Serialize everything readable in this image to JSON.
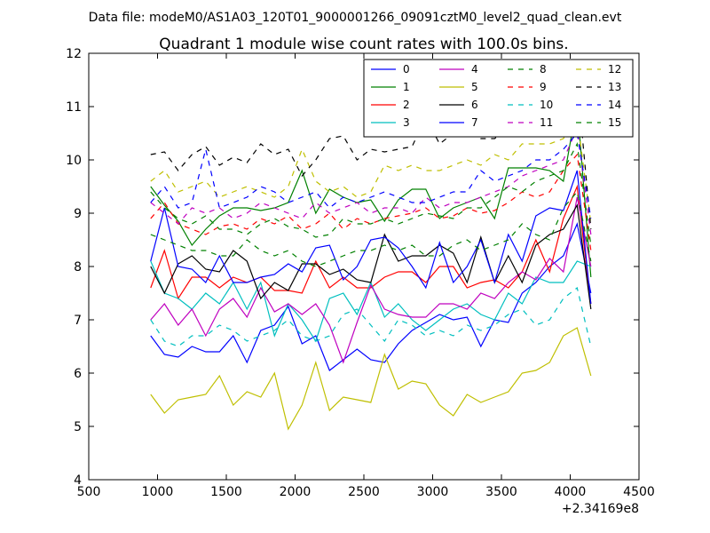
{
  "header": {
    "file_label": "Data file: modeM0/AS1A03_120T01_9000001266_09091cztM0_level2_quad_clean.evt"
  },
  "chart_data": {
    "type": "line",
    "title": "Quadrant 1 module wise count rates with 100.0s bins.",
    "xlabel": "",
    "ylabel": "",
    "x_offset_label": "+2.34169e8",
    "xlim": [
      500,
      4500
    ],
    "ylim": [
      4,
      12
    ],
    "x_ticks": [
      500,
      1000,
      1500,
      2000,
      2500,
      3000,
      3500,
      4000,
      4500
    ],
    "y_ticks": [
      4,
      5,
      6,
      7,
      8,
      9,
      10,
      11,
      12
    ],
    "grid": false,
    "legend_position": "top-right",
    "legend_columns": 4,
    "x": [
      950,
      1050,
      1150,
      1250,
      1350,
      1450,
      1550,
      1650,
      1750,
      1850,
      1950,
      2050,
      2150,
      2250,
      2350,
      2450,
      2550,
      2650,
      2750,
      2850,
      2950,
      3050,
      3150,
      3250,
      3350,
      3450,
      3550,
      3650,
      3750,
      3850,
      3950,
      4050,
      4150
    ],
    "series": [
      {
        "name": "0",
        "color": "#0000ff",
        "dash": "solid",
        "values": [
          6.7,
          6.35,
          6.3,
          6.5,
          6.4,
          6.4,
          6.7,
          6.2,
          6.8,
          6.9,
          7.25,
          6.55,
          6.7,
          6.05,
          6.25,
          6.45,
          6.25,
          6.2,
          6.55,
          6.8,
          6.95,
          7.1,
          7.0,
          7.05,
          6.5,
          7.0,
          6.95,
          7.5,
          7.7,
          8.0,
          8.2,
          8.8,
          7.5
        ]
      },
      {
        "name": "1",
        "color": "#008000",
        "dash": "solid",
        "values": [
          9.5,
          9.15,
          8.85,
          8.4,
          8.7,
          8.95,
          9.1,
          9.1,
          9.05,
          9.1,
          9.2,
          9.8,
          9.0,
          9.45,
          9.3,
          9.2,
          9.25,
          8.85,
          9.25,
          9.45,
          9.45,
          8.9,
          9.1,
          9.2,
          9.3,
          8.9,
          9.85,
          9.85,
          9.85,
          9.8,
          9.6,
          11.05,
          7.8
        ]
      },
      {
        "name": "2",
        "color": "#ff0000",
        "dash": "solid",
        "values": [
          7.6,
          8.3,
          7.4,
          7.8,
          7.8,
          7.6,
          7.8,
          7.7,
          7.8,
          7.55,
          7.55,
          7.5,
          8.1,
          7.6,
          7.8,
          7.6,
          7.6,
          7.8,
          7.9,
          7.9,
          7.7,
          8.0,
          8.0,
          7.6,
          7.7,
          7.75,
          7.6,
          7.9,
          8.5,
          7.9,
          8.9,
          9.5,
          7.3
        ]
      },
      {
        "name": "3",
        "color": "#00bfbf",
        "dash": "solid",
        "values": [
          8.1,
          7.5,
          7.4,
          7.2,
          7.5,
          7.3,
          7.7,
          7.2,
          7.7,
          6.7,
          7.3,
          7.0,
          6.6,
          7.4,
          7.5,
          7.1,
          7.7,
          7.05,
          7.3,
          7.0,
          6.8,
          7.0,
          7.2,
          7.3,
          7.1,
          7.0,
          7.5,
          7.3,
          7.8,
          7.7,
          7.7,
          8.1,
          8.0
        ]
      },
      {
        "name": "4",
        "color": "#bf00bf",
        "dash": "solid",
        "values": [
          7.0,
          7.3,
          6.9,
          7.2,
          6.7,
          7.2,
          7.4,
          7.05,
          7.6,
          7.15,
          7.3,
          7.1,
          7.3,
          6.9,
          6.2,
          6.95,
          7.65,
          7.2,
          7.1,
          7.05,
          7.05,
          7.3,
          7.3,
          7.2,
          7.5,
          7.4,
          7.7,
          7.9,
          7.75,
          8.15,
          7.9,
          9.3,
          8.0
        ]
      },
      {
        "name": "5",
        "color": "#bfbf00",
        "dash": "solid",
        "values": [
          5.6,
          5.25,
          5.5,
          5.55,
          5.6,
          5.95,
          5.4,
          5.65,
          5.55,
          6.0,
          4.95,
          5.4,
          6.2,
          5.3,
          5.55,
          5.5,
          5.45,
          6.35,
          5.7,
          5.85,
          5.8,
          5.4,
          5.2,
          5.6,
          5.45,
          5.55,
          5.65,
          6.0,
          6.05,
          6.2,
          6.7,
          6.85,
          5.95
        ]
      },
      {
        "name": "6",
        "color": "#000000",
        "dash": "solid",
        "values": [
          8.0,
          7.5,
          8.05,
          8.2,
          7.95,
          7.9,
          8.3,
          8.1,
          7.4,
          7.7,
          7.55,
          8.05,
          8.05,
          7.85,
          7.95,
          7.75,
          7.7,
          8.6,
          8.1,
          8.2,
          8.2,
          8.4,
          8.25,
          7.7,
          8.55,
          7.7,
          8.2,
          7.7,
          8.4,
          8.6,
          8.7,
          9.15,
          7.2
        ]
      },
      {
        "name": "7",
        "color": "#0000ff",
        "dash": "solid",
        "values": [
          8.1,
          9.1,
          8.0,
          7.95,
          7.7,
          8.2,
          7.7,
          7.7,
          7.8,
          7.85,
          8.05,
          7.9,
          8.35,
          8.4,
          7.75,
          8.0,
          8.5,
          8.55,
          8.35,
          8.0,
          7.6,
          8.45,
          7.7,
          8.0,
          8.5,
          7.7,
          8.6,
          8.1,
          8.95,
          9.1,
          9.05,
          9.8,
          7.3
        ]
      },
      {
        "name": "8",
        "color": "#008000",
        "dash": "dashed",
        "values": [
          8.6,
          8.5,
          8.4,
          8.3,
          8.3,
          8.2,
          8.2,
          8.5,
          8.3,
          8.2,
          8.3,
          8.1,
          8.0,
          8.1,
          8.2,
          8.3,
          8.3,
          8.4,
          8.3,
          8.4,
          8.2,
          8.2,
          8.4,
          8.5,
          8.3,
          8.4,
          8.5,
          8.8,
          8.6,
          8.5,
          9.1,
          9.4,
          8.1
        ]
      },
      {
        "name": "9",
        "color": "#ff0000",
        "dash": "dashed",
        "values": [
          8.9,
          9.2,
          8.8,
          8.7,
          8.6,
          8.75,
          8.8,
          8.7,
          8.9,
          8.8,
          8.95,
          8.7,
          8.8,
          9.0,
          8.7,
          8.9,
          8.8,
          8.9,
          8.95,
          9.0,
          9.1,
          8.9,
          8.95,
          9.1,
          9.0,
          9.05,
          9.2,
          9.4,
          9.3,
          9.4,
          9.8,
          10.1,
          8.3
        ]
      },
      {
        "name": "10",
        "color": "#00bfbf",
        "dash": "dashed",
        "values": [
          7.0,
          6.6,
          6.5,
          6.7,
          6.7,
          6.9,
          6.8,
          6.6,
          6.7,
          6.8,
          7.0,
          6.7,
          6.6,
          6.7,
          7.1,
          7.2,
          6.9,
          6.6,
          7.0,
          6.9,
          6.7,
          6.8,
          6.7,
          6.9,
          6.8,
          6.9,
          7.1,
          7.2,
          6.9,
          7.0,
          7.4,
          7.6,
          6.5
        ]
      },
      {
        "name": "11",
        "color": "#bf00bf",
        "dash": "dashed",
        "values": [
          9.2,
          9.0,
          8.8,
          9.1,
          9.0,
          9.1,
          8.9,
          9.0,
          9.2,
          9.1,
          9.0,
          8.9,
          9.2,
          9.0,
          9.1,
          9.2,
          9.0,
          9.1,
          9.1,
          9.0,
          9.3,
          9.1,
          9.2,
          9.2,
          9.3,
          9.4,
          9.5,
          9.7,
          9.8,
          9.9,
          10.0,
          10.6,
          8.6
        ]
      },
      {
        "name": "12",
        "color": "#bfbf00",
        "dash": "dashed",
        "values": [
          9.6,
          9.8,
          9.4,
          9.5,
          9.6,
          9.3,
          9.4,
          9.5,
          9.4,
          9.3,
          9.5,
          10.2,
          9.6,
          9.4,
          9.5,
          9.3,
          9.4,
          9.9,
          9.8,
          9.9,
          9.8,
          9.8,
          9.9,
          10.0,
          9.9,
          10.1,
          10.0,
          10.3,
          10.3,
          10.3,
          10.4,
          10.8,
          8.8
        ]
      },
      {
        "name": "13",
        "color": "#000000",
        "dash": "dashed",
        "values": [
          10.1,
          10.15,
          9.8,
          10.1,
          10.25,
          9.9,
          10.05,
          9.95,
          10.3,
          10.1,
          10.2,
          9.7,
          10.0,
          10.4,
          10.45,
          10.0,
          10.2,
          10.15,
          10.2,
          10.25,
          10.8,
          10.3,
          10.5,
          10.5,
          10.4,
          10.4,
          10.6,
          10.8,
          10.9,
          11.0,
          11.6,
          11.5,
          8.7
        ]
      },
      {
        "name": "14",
        "color": "#0000ff",
        "dash": "dashed",
        "values": [
          9.2,
          9.5,
          9.1,
          9.2,
          10.2,
          9.1,
          9.2,
          9.3,
          9.5,
          9.4,
          9.2,
          9.3,
          9.4,
          9.1,
          9.3,
          9.2,
          9.3,
          9.4,
          9.3,
          9.2,
          9.2,
          9.3,
          9.4,
          9.4,
          9.8,
          9.6,
          9.7,
          9.8,
          10.0,
          10.0,
          10.2,
          10.5,
          8.9
        ]
      },
      {
        "name": "15",
        "color": "#008000",
        "dash": "dashed",
        "values": [
          9.4,
          9.1,
          8.9,
          8.8,
          8.95,
          8.7,
          8.7,
          8.6,
          8.8,
          8.9,
          8.75,
          8.7,
          8.55,
          8.6,
          8.9,
          8.8,
          8.8,
          8.9,
          8.8,
          8.9,
          9.0,
          8.95,
          8.9,
          9.1,
          9.1,
          9.3,
          9.5,
          9.4,
          9.6,
          9.7,
          9.8,
          10.3,
          8.4
        ]
      }
    ]
  }
}
